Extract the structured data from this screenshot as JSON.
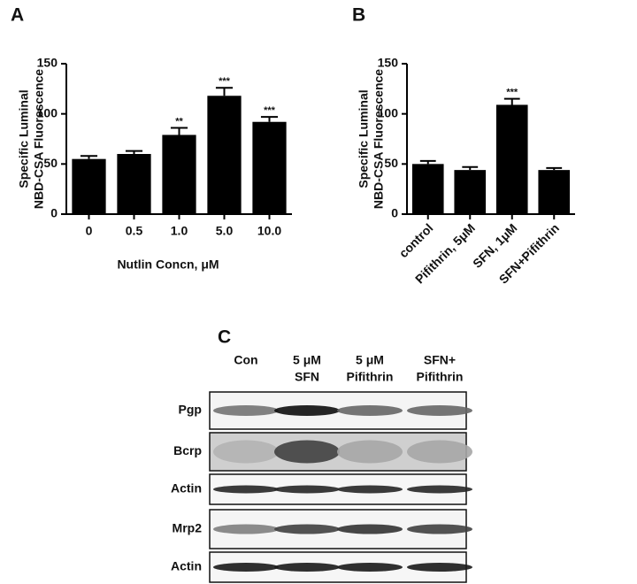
{
  "chart_data": [
    {
      "type": "bar",
      "panel": "A",
      "ylabel": [
        "Specific Luminal",
        "NBD-CSA Fluorescence"
      ],
      "xlabel": "Nutlin Concn, μM",
      "categories": [
        "0",
        "0.5",
        "1.0",
        "5.0",
        "10.0"
      ],
      "values": [
        55,
        60,
        79,
        118,
        92
      ],
      "errors": [
        3,
        3,
        7,
        8,
        5
      ],
      "significance": [
        null,
        null,
        "**",
        "***",
        "***"
      ],
      "color": "#000000",
      "ylim": [
        0,
        150
      ],
      "yticks": [
        0,
        50,
        100,
        150
      ]
    },
    {
      "type": "bar",
      "panel": "B",
      "ylabel": [
        "Specific Luminal",
        "NBD-CSA Fluorescence"
      ],
      "categories": [
        "control",
        "Pifithrin, 5μM",
        "SFN, 1μM",
        "SFN+Pifithrin"
      ],
      "values": [
        50,
        44,
        109,
        44
      ],
      "errors": [
        3,
        3,
        6,
        2
      ],
      "significance": [
        null,
        null,
        "***",
        null
      ],
      "color": "#000000",
      "ylim": [
        0,
        150
      ],
      "yticks": [
        0,
        50,
        100,
        150
      ]
    }
  ],
  "blot": {
    "panel": "C",
    "columns": [
      [
        "Con"
      ],
      [
        "5 μM",
        "SFN"
      ],
      [
        "5 μM",
        "Pifithrin"
      ],
      [
        "SFN+",
        "Pifithrin"
      ]
    ],
    "rows": [
      "Pgp",
      "Bcrp",
      "Actin",
      "Mrp2",
      "Actin"
    ]
  }
}
